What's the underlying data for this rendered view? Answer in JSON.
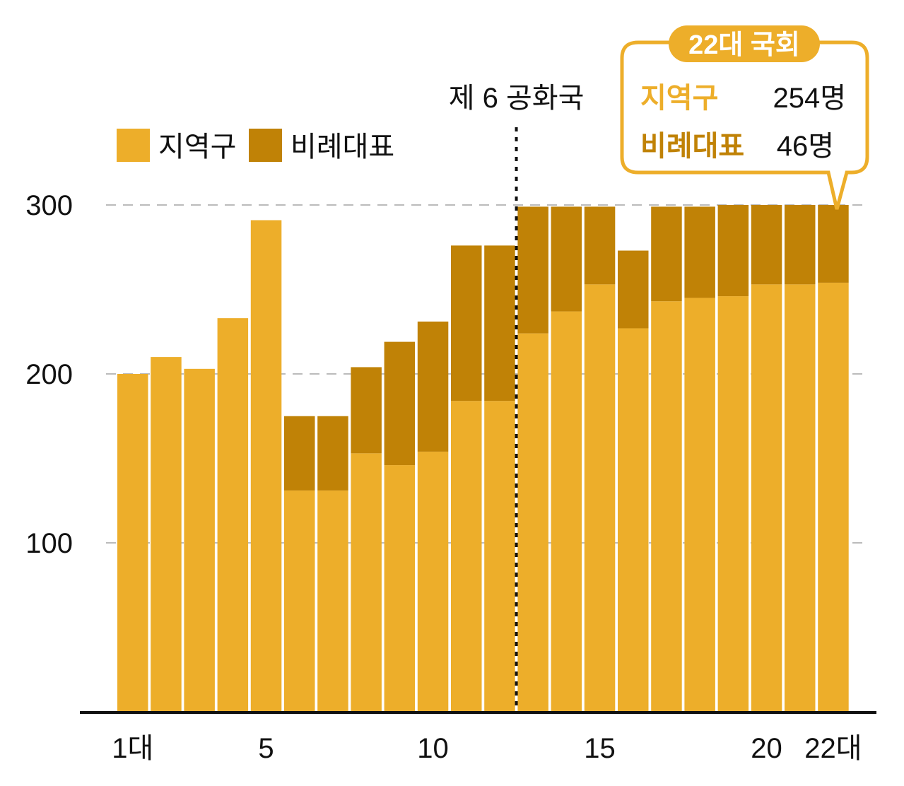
{
  "colors": {
    "district": "#EDAE2A",
    "proportional": "#C08206",
    "axis": "#111111",
    "grid": "#BBBBBB",
    "background": "#ffffff"
  },
  "legend": {
    "district_label": "지역구",
    "proportional_label": "비례대표"
  },
  "annotation": {
    "era_label": "제 6 공화국"
  },
  "callout": {
    "title": "22대 국회",
    "rows": [
      {
        "label": "지역구",
        "value": "254명"
      },
      {
        "label": "비례대표",
        "value": "46명"
      }
    ]
  },
  "chart_data": {
    "type": "bar",
    "stacked": true,
    "categories": [
      "1대",
      "2대",
      "3대",
      "4대",
      "5대",
      "6대",
      "7대",
      "8대",
      "9대",
      "10대",
      "11대",
      "12대",
      "13대",
      "14대",
      "15대",
      "16대",
      "17대",
      "18대",
      "19대",
      "20대",
      "21대",
      "22대"
    ],
    "x_tick_labels": [
      "1대",
      "5",
      "10",
      "15",
      "20",
      "22대"
    ],
    "x_tick_positions": [
      1,
      5,
      10,
      15,
      20,
      22
    ],
    "series": [
      {
        "name": "지역구",
        "values": [
          200,
          210,
          203,
          233,
          291,
          131,
          131,
          153,
          146,
          154,
          184,
          184,
          224,
          237,
          253,
          227,
          243,
          245,
          246,
          253,
          253,
          254
        ]
      },
      {
        "name": "비례대표",
        "values": [
          0,
          0,
          0,
          0,
          0,
          44,
          44,
          51,
          73,
          77,
          92,
          92,
          75,
          62,
          46,
          46,
          56,
          54,
          54,
          47,
          47,
          46
        ]
      }
    ],
    "y_ticks": [
      "100",
      "200",
      "300"
    ],
    "y_tick_values": [
      100,
      200,
      300
    ],
    "ylim": [
      0,
      300
    ],
    "grid": true,
    "legend_position": "top-left",
    "annotation_after_category": 12
  }
}
